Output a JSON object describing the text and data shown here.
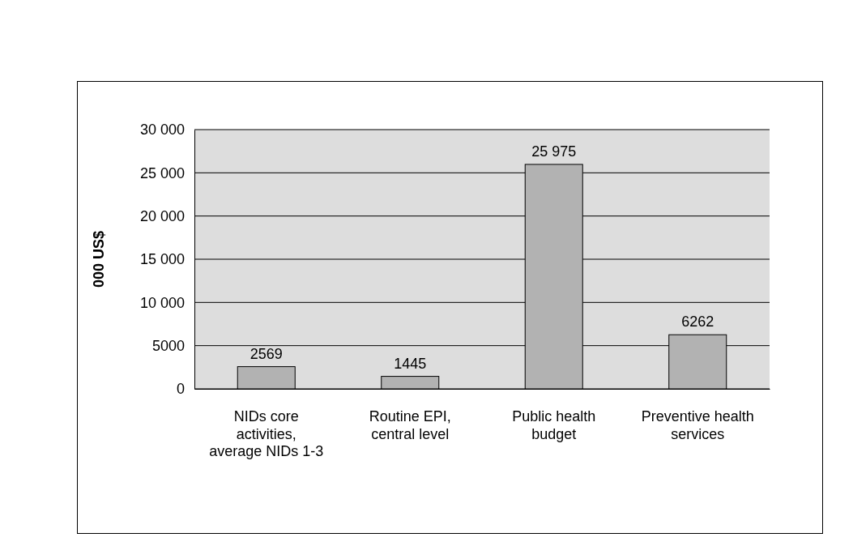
{
  "chart_data": {
    "type": "bar",
    "ylabel": "000 US$",
    "categories": [
      "NIDs core activities, average NIDs 1-3",
      "Routine EPI, central level",
      "Public health budget",
      "Preventive health services"
    ],
    "series": [
      {
        "color": "#b2b2b2",
        "values": [
          2569,
          1445,
          25975,
          6262
        ],
        "value_labels": [
          "2569",
          "1445",
          "25 975",
          "6262"
        ]
      }
    ],
    "ylim": [
      0,
      30000
    ],
    "yticks": [
      0,
      5000,
      {
        "value": 10000,
        "label": "10 000"
      },
      {
        "value": 15000,
        "label": "15 000"
      },
      {
        "value": 20000,
        "label": "20 000"
      },
      {
        "value": 25000,
        "label": "25 000"
      },
      {
        "value": 30000,
        "label": "30 000"
      }
    ],
    "grid": "y"
  }
}
